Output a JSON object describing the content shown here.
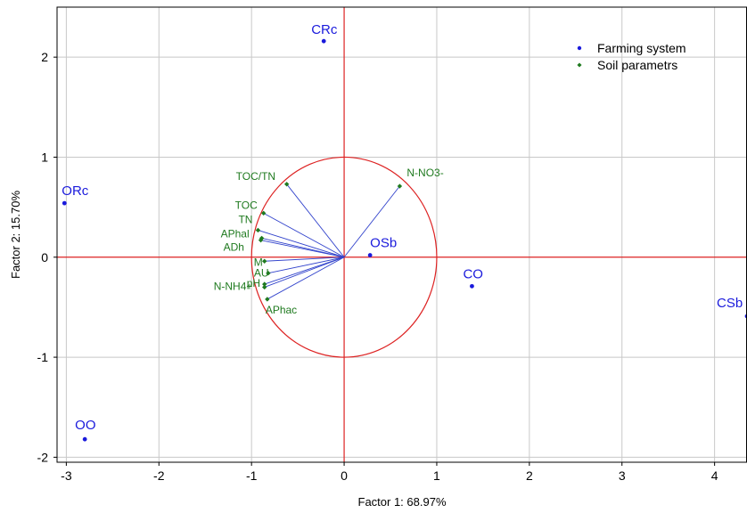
{
  "chart_data": {
    "type": "scatter",
    "title": "",
    "xlabel": "Factor 1: 68.97%",
    "ylabel": "Factor 2: 15.70%",
    "xlim": [
      -3.1,
      4.35
    ],
    "ylim": [
      -2.05,
      2.5
    ],
    "x_ticks": [
      -3,
      -2,
      -1,
      0,
      1,
      2,
      3,
      4
    ],
    "y_ticks": [
      -2,
      -1,
      0,
      1,
      2
    ],
    "grid": true,
    "legend_position": "top-right",
    "unit_circle": true,
    "colors": {
      "farming_system": "#1a1adc",
      "soil_parameters": "#1f7a1f",
      "vectors": "#3344cc",
      "reference": "#dd2222",
      "grid": "#c8c8c8"
    },
    "series": [
      {
        "name": "Farming system",
        "marker": "circle",
        "points": [
          {
            "label": "CRc",
            "x": -0.22,
            "y": 2.16
          },
          {
            "label": "ORc",
            "x": -3.02,
            "y": 0.54
          },
          {
            "label": "OSb",
            "x": 0.28,
            "y": 0.02
          },
          {
            "label": "CO",
            "x": 1.38,
            "y": -0.29
          },
          {
            "label": "CSb",
            "x": 4.35,
            "y": -0.59
          },
          {
            "label": "OO",
            "x": -2.8,
            "y": -1.82
          }
        ]
      },
      {
        "name": "Soil parametrs",
        "marker": "diamond",
        "vectors_from_origin": true,
        "points": [
          {
            "label": "TOC/TN",
            "x": -0.62,
            "y": 0.73
          },
          {
            "label": "N-NO3-",
            "x": 0.6,
            "y": 0.71
          },
          {
            "label": "TOC",
            "x": -0.87,
            "y": 0.44
          },
          {
            "label": "TN",
            "x": -0.93,
            "y": 0.27
          },
          {
            "label": "APhal",
            "x": -0.89,
            "y": 0.19
          },
          {
            "label": "ADh",
            "x": -0.9,
            "y": 0.17
          },
          {
            "label": "M",
            "x": -0.86,
            "y": -0.04
          },
          {
            "label": "AU",
            "x": -0.82,
            "y": -0.16
          },
          {
            "label": "pH",
            "x": -0.86,
            "y": -0.27
          },
          {
            "label": "N-NH4+",
            "x": -0.86,
            "y": -0.3
          },
          {
            "label": "APhac",
            "x": -0.83,
            "y": -0.42
          }
        ]
      }
    ]
  }
}
